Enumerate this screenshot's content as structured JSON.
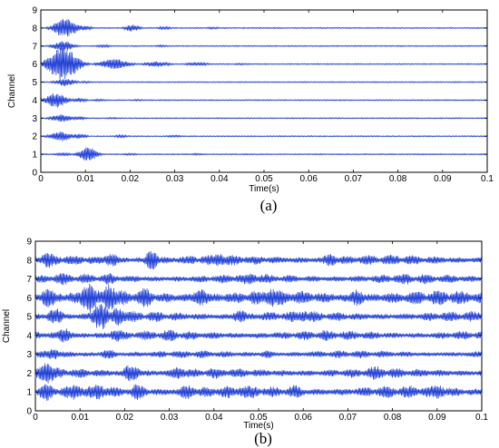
{
  "chart_data": [
    {
      "type": "line",
      "panel_label": "(a)",
      "xlabel": "Time(s)",
      "ylabel": "Channel",
      "xlim": [
        0,
        0.1
      ],
      "ylim": [
        0,
        9
      ],
      "x_ticks": [
        "0",
        "0.01",
        "0.02",
        "0.03",
        "0.04",
        "0.05",
        "0.06",
        "0.07",
        "0.08",
        "0.09",
        "0.1"
      ],
      "y_ticks": [
        "0",
        "1",
        "2",
        "3",
        "4",
        "5",
        "6",
        "7",
        "8",
        "9"
      ],
      "grid": false,
      "color": "#1f3fd6",
      "series": [
        {
          "channel": 1,
          "offset": 1,
          "bursts": [
            [
              0.005,
              0.08,
              0.0025
            ],
            [
              0.0105,
              0.42,
              0.0022
            ],
            [
              0.02,
              0.06,
              0.002
            ],
            [
              0.035,
              0.05,
              0.002
            ]
          ]
        },
        {
          "channel": 2,
          "offset": 2,
          "bursts": [
            [
              0.0045,
              0.28,
              0.0028
            ],
            [
              0.0085,
              0.15,
              0.002
            ],
            [
              0.018,
              0.08,
              0.002
            ],
            [
              0.03,
              0.06,
              0.002
            ]
          ]
        },
        {
          "channel": 3,
          "offset": 3,
          "bursts": [
            [
              0.0045,
              0.22,
              0.0025
            ],
            [
              0.0085,
              0.1,
              0.002
            ],
            [
              0.016,
              0.05,
              0.002
            ]
          ]
        },
        {
          "channel": 4,
          "offset": 4,
          "bursts": [
            [
              0.0035,
              0.42,
              0.0025
            ],
            [
              0.0085,
              0.12,
              0.002
            ],
            [
              0.013,
              0.06,
              0.002
            ],
            [
              0.022,
              0.05,
              0.002
            ]
          ]
        },
        {
          "channel": 5,
          "offset": 5,
          "bursts": [
            [
              0.0055,
              0.22,
              0.0025
            ],
            [
              0.01,
              0.06,
              0.002
            ]
          ]
        },
        {
          "channel": 6,
          "offset": 6,
          "bursts": [
            [
              0.005,
              0.95,
              0.0035
            ],
            [
              0.0165,
              0.3,
              0.0035
            ],
            [
              0.026,
              0.16,
              0.003
            ],
            [
              0.035,
              0.1,
              0.003
            ],
            [
              0.045,
              0.05,
              0.003
            ]
          ]
        },
        {
          "channel": 7,
          "offset": 7,
          "bursts": [
            [
              0.005,
              0.28,
              0.0025
            ],
            [
              0.014,
              0.08,
              0.002
            ],
            [
              0.027,
              0.06,
              0.002
            ]
          ]
        },
        {
          "channel": 8,
          "offset": 8,
          "bursts": [
            [
              0.0055,
              0.55,
              0.0028
            ],
            [
              0.0095,
              0.15,
              0.002
            ],
            [
              0.0205,
              0.2,
              0.0018
            ],
            [
              0.0275,
              0.08,
              0.002
            ],
            [
              0.0385,
              0.06,
              0.002
            ]
          ]
        }
      ]
    },
    {
      "type": "line",
      "panel_label": "(b)",
      "xlabel": "Time(s)",
      "ylabel": "Channel",
      "xlim": [
        0,
        0.1
      ],
      "ylim": [
        0,
        9
      ],
      "x_ticks": [
        "0",
        "0.01",
        "0.02",
        "0.03",
        "0.04",
        "0.05",
        "0.06",
        "0.07",
        "0.08",
        "0.09",
        "0.1"
      ],
      "y_ticks": [
        "0",
        "1",
        "2",
        "3",
        "4",
        "5",
        "6",
        "7",
        "8",
        "9"
      ],
      "grid": false,
      "color": "#1f3fd6",
      "series": [
        {
          "channel": 1,
          "offset": 1,
          "amplitude": 0.35,
          "bursts": [
            [
              0.0025,
              0.48,
              0.002
            ],
            [
              0.009,
              0.45,
              0.002
            ],
            [
              0.014,
              0.42,
              0.002
            ],
            [
              0.023,
              0.45,
              0.002
            ],
            [
              0.034,
              0.4,
              0.002
            ],
            [
              0.047,
              0.35,
              0.002
            ],
            [
              0.058,
              0.38,
              0.002
            ],
            [
              0.09,
              0.4,
              0.002
            ]
          ]
        },
        {
          "channel": 2,
          "offset": 2,
          "amplitude": 0.3,
          "bursts": [
            [
              0.0025,
              0.55,
              0.0025
            ],
            [
              0.0215,
              0.5,
              0.002
            ],
            [
              0.032,
              0.35,
              0.002
            ],
            [
              0.076,
              0.38,
              0.0025
            ]
          ]
        },
        {
          "channel": 3,
          "offset": 3,
          "amplitude": 0.22,
          "bursts": [
            [
              0.004,
              0.3,
              0.002
            ],
            [
              0.0165,
              0.28,
              0.002
            ],
            [
              0.052,
              0.22,
              0.002
            ]
          ]
        },
        {
          "channel": 4,
          "offset": 4,
          "amplitude": 0.28,
          "bursts": [
            [
              0.0065,
              0.4,
              0.002
            ],
            [
              0.0185,
              0.38,
              0.002
            ],
            [
              0.03,
              0.35,
              0.002
            ],
            [
              0.065,
              0.3,
              0.002
            ]
          ]
        },
        {
          "channel": 5,
          "offset": 5,
          "amplitude": 0.3,
          "bursts": [
            [
              0.0045,
              0.45,
              0.002
            ],
            [
              0.0145,
              0.75,
              0.002
            ],
            [
              0.0185,
              0.55,
              0.002
            ],
            [
              0.046,
              0.35,
              0.002
            ],
            [
              0.06,
              0.3,
              0.002
            ]
          ]
        },
        {
          "channel": 6,
          "offset": 6,
          "amplitude": 0.42,
          "bursts": [
            [
              0.003,
              0.55,
              0.002
            ],
            [
              0.012,
              0.85,
              0.002
            ],
            [
              0.0165,
              0.7,
              0.002
            ],
            [
              0.0245,
              0.55,
              0.002
            ],
            [
              0.037,
              0.5,
              0.002
            ],
            [
              0.053,
              0.5,
              0.002
            ],
            [
              0.072,
              0.45,
              0.002
            ],
            [
              0.095,
              0.4,
              0.002
            ]
          ]
        },
        {
          "channel": 7,
          "offset": 7,
          "amplitude": 0.28,
          "bursts": [
            [
              0.006,
              0.35,
              0.002
            ],
            [
              0.0165,
              0.32,
              0.002
            ],
            [
              0.048,
              0.3,
              0.002
            ],
            [
              0.083,
              0.3,
              0.002
            ]
          ]
        },
        {
          "channel": 8,
          "offset": 8,
          "amplitude": 0.3,
          "bursts": [
            [
              0.003,
              0.42,
              0.002
            ],
            [
              0.017,
              0.38,
              0.002
            ],
            [
              0.026,
              0.6,
              0.0015
            ],
            [
              0.041,
              0.35,
              0.002
            ],
            [
              0.066,
              0.35,
              0.002
            ]
          ]
        }
      ]
    }
  ]
}
